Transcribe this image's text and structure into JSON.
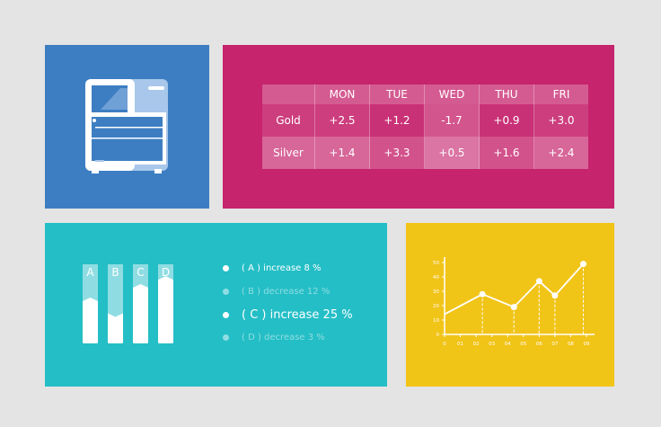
{
  "table": {
    "headers": [
      "",
      "MON",
      "TUE",
      "WED",
      "THU",
      "FRI"
    ],
    "rows": [
      {
        "label": "Gold",
        "values": [
          "+2.5",
          "+1.2",
          "-1.7",
          "+0.9",
          "+3.0"
        ]
      },
      {
        "label": "Silver",
        "values": [
          "+1.4",
          "+3.3",
          "+0.5",
          "+1.6",
          "+2.4"
        ]
      }
    ]
  },
  "bars": {
    "labels": [
      "A",
      "B",
      "C",
      "D"
    ],
    "levels": [
      0.58,
      0.38,
      0.75,
      0.85
    ]
  },
  "legend": [
    {
      "text": "( A ) increase 8 %",
      "active": true
    },
    {
      "text": "( B ) decrease 12 %",
      "active": false
    },
    {
      "text": "( C ) increase 25 %",
      "active": true
    },
    {
      "text": "( D ) decrease 3 %",
      "active": false
    }
  ],
  "colors": {
    "blue": "#3d7ec2",
    "magenta": "#c6246d",
    "teal": "#24bec6",
    "yellow": "#f1c418"
  },
  "chart_data": {
    "type": "line",
    "x": [
      0,
      2.4,
      4.4,
      6,
      7,
      8.8
    ],
    "y": [
      14,
      28,
      19,
      37,
      27,
      49
    ],
    "xticks": [
      "0",
      "01",
      "02",
      "03",
      "04",
      "05",
      "06",
      "07",
      "08",
      "09"
    ],
    "yticks": [
      "0",
      "10",
      "20",
      "30",
      "40",
      "50"
    ],
    "ylim": [
      0,
      50
    ],
    "xlim": [
      0,
      9
    ],
    "grid": false
  }
}
